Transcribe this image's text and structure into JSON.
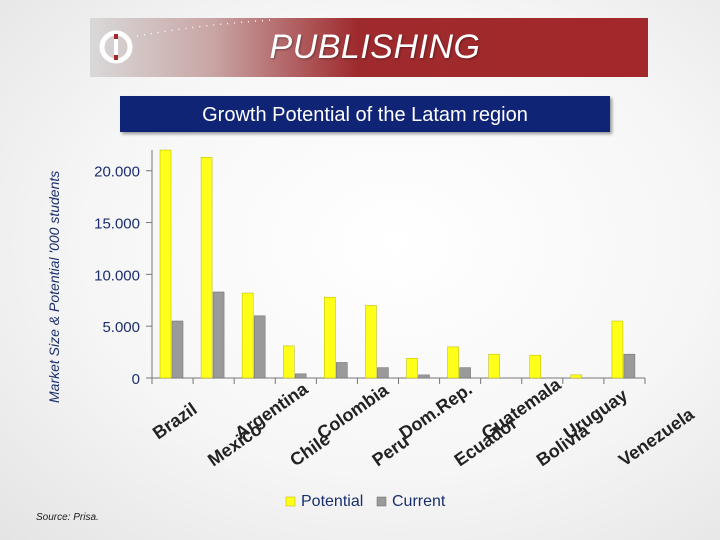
{
  "header": {
    "title": "PUBLISHING"
  },
  "source": "Source: Prisa.",
  "colors": {
    "potential": "#ffff1a",
    "current": "#9a9a9a",
    "title_bar": "#102476",
    "banner": "#a3282b",
    "axis_text": "#1a2e6e"
  },
  "chart_data": {
    "type": "bar",
    "title": "Growth Potential of the Latam region",
    "ylabel": "Market Size & Potential '000 students",
    "xlabel": "",
    "ylim": [
      0,
      22000
    ],
    "yticks": [
      0,
      5000,
      10000,
      15000,
      20000
    ],
    "ytick_labels": [
      "0",
      "5.000",
      "10.000",
      "15.000",
      "20.000"
    ],
    "categories": [
      "Brazil",
      "Mexico",
      "Argentina",
      "Chile",
      "Colombia",
      "Peru",
      "Dom.Rep.",
      "Ecuador",
      "Guatemala",
      "Bolivia",
      "Uruguay",
      "Venezuela"
    ],
    "series": [
      {
        "name": "Potential",
        "values": [
          22000,
          21300,
          8200,
          3100,
          7800,
          7000,
          1900,
          3000,
          2300,
          2200,
          300,
          5500
        ]
      },
      {
        "name": "Current",
        "values": [
          5500,
          8300,
          6000,
          400,
          1500,
          1000,
          300,
          1000,
          0,
          0,
          0,
          2300
        ]
      }
    ],
    "legend": "bottom",
    "grid": false
  }
}
